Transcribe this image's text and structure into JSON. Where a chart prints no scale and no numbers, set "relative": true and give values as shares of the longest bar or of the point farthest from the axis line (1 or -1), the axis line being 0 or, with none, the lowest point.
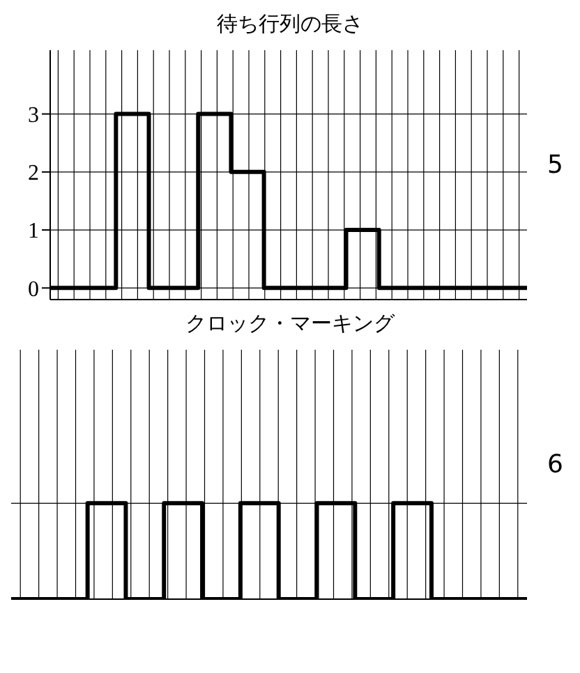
{
  "chart_data": [
    {
      "type": "step",
      "title": "待ち行列の長さ",
      "annotations": [
        "5"
      ],
      "categories": [
        null,
        null,
        null,
        null,
        null,
        null,
        null,
        null,
        null,
        null,
        null,
        null,
        null,
        null,
        null,
        null,
        null,
        null,
        null,
        null,
        null,
        null,
        null,
        null,
        null,
        null,
        null,
        null,
        null,
        null
      ],
      "series": [
        {
          "color": "#000000",
          "values": [
            0,
            0,
            0,
            0,
            3,
            3,
            0,
            0,
            0,
            3,
            3,
            2,
            2,
            0,
            0,
            0,
            0,
            0,
            1,
            1,
            0,
            0,
            0,
            0,
            0,
            0,
            0,
            0,
            0,
            0
          ]
        }
      ],
      "ylim": [
        -0.2,
        4.1
      ],
      "yticks": [
        0,
        1,
        2,
        3
      ],
      "grid": true,
      "tick_labels": "y"
    },
    {
      "type": "step",
      "title": "クロック・マーキング",
      "annotations": [
        "6"
      ],
      "relative": true,
      "categories": [
        null,
        null,
        null,
        null,
        null,
        null,
        null,
        null,
        null,
        null,
        null,
        null,
        null,
        null,
        null,
        null,
        null,
        null,
        null,
        null,
        null,
        null,
        null,
        null,
        null,
        null,
        null,
        null
      ],
      "series": [
        {
          "color": "#000000",
          "values": [
            0,
            0,
            0,
            0,
            1,
            1,
            0,
            0,
            1,
            1,
            0,
            0,
            1,
            1,
            0,
            0,
            1,
            1,
            0,
            0,
            1,
            1,
            0,
            0,
            0,
            0,
            0,
            0
          ]
        }
      ],
      "grid": true,
      "tick_labels": false
    }
  ]
}
